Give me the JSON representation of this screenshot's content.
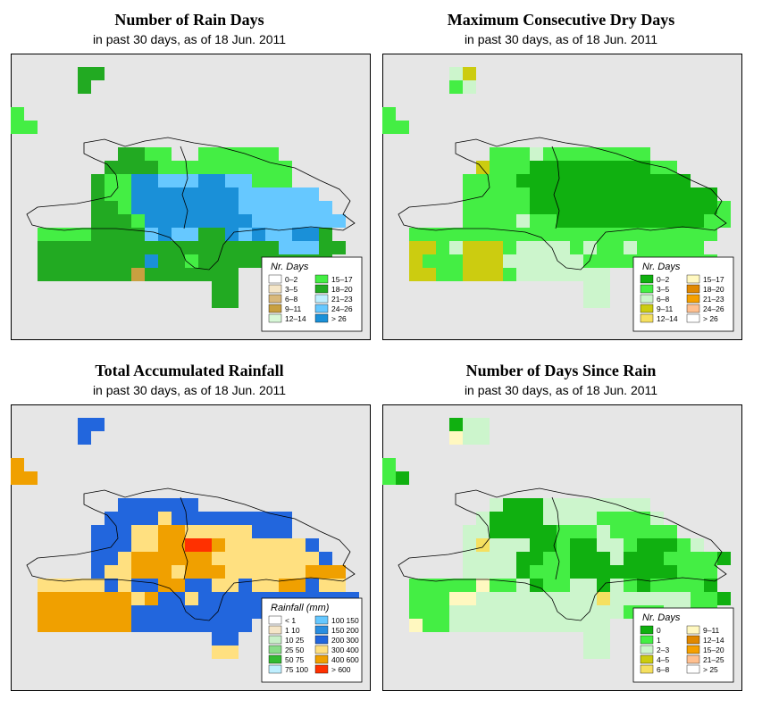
{
  "panels": [
    {
      "id": "rain-days",
      "title": "Number of Rain Days",
      "subtitle": "in past 30 days, as of  18 Jun. 2011",
      "legend": {
        "title": "Nr. Days",
        "items": [
          {
            "label": "0–2",
            "color": "#ffffff"
          },
          {
            "label": "3–5",
            "color": "#f5e6c8"
          },
          {
            "label": "6–8",
            "color": "#d9b87a"
          },
          {
            "label": "9–11",
            "color": "#c8a040"
          },
          {
            "label": "12–14",
            "color": "#d8f8d8"
          },
          {
            "label": "15–17",
            "color": "#44ee44"
          },
          {
            "label": "18–20",
            "color": "#22aa22"
          },
          {
            "label": "21–23",
            "color": "#bfefff"
          },
          {
            "label": "24–26",
            "color": "#66c8ff"
          },
          {
            "label": "> 26",
            "color": "#1a90d8"
          }
        ]
      },
      "grid": [
        "...........................",
        ".....GG....................",
        ".....G.....................",
        "...........................",
        "L..........................",
        "LL.........................",
        "...........................",
        "........GGLL..LLLLLL.......",
        ".......GGGGLLLLLLLLLL......",
        "......GLLBBSSSBBSSLLL......",
        "......GLLBBBBBBBBSSSSSS....",
        "......GGLBBBBBBBBSSSSSSS...",
        "......GGGLBBBBBBBBSSSSSSS..",
        "..LLLLGGGGSBSSGGBSBSSBBG...",
        "..GGGGGGGGGGGGGGGGGGSSSGG..",
        "..GGGGGGGGBGGLGGGGGGGGGG...",
        "..GGGGGGGOGGGGGGG..........",
        "...............GG..........",
        "...............GG..........",
        "..........................."
      ]
    },
    {
      "id": "dry-days",
      "title": "Maximum Consecutive Dry Days",
      "subtitle": "in past 30 days, as of  18 Jun. 2011",
      "legend": {
        "title": "Nr. Days",
        "items": [
          {
            "label": "0–2",
            "color": "#10b010"
          },
          {
            "label": "3–5",
            "color": "#44ee44"
          },
          {
            "label": "6–8",
            "color": "#ccf5cc"
          },
          {
            "label": "9–11",
            "color": "#cccc10"
          },
          {
            "label": "12–14",
            "color": "#f5e060"
          },
          {
            "label": "15–17",
            "color": "#fff8c0"
          },
          {
            "label": "18–20",
            "color": "#e08800"
          },
          {
            "label": "21–23",
            "color": "#f5a000"
          },
          {
            "label": "24–26",
            "color": "#ffc090"
          },
          {
            "label": "> 26",
            "color": "#ffffff"
          }
        ]
      },
      "grid": [
        "...........................",
        ".....LY....................",
        ".....GL....................",
        "...........................",
        "G..........................",
        "GG.........................",
        "...........................",
        "........GGGLGGGGGGGG.......",
        ".......YGGGDDDDDDDDDGG.....",
        "......GGGGDDDDDDDDDDDDD....",
        "......GGGGGDDDDDDDDDDDDDD..",
        "......GGGGGDDDDDDDDDDDDDDG.",
        "......GGGGLGGDDDDDDDDDDDGG.",
        "..GGGGGGGGGGGGGGGGGGGGGGG..",
        "..YYGLYYYGLLLLGLGGLGGGGG...",
        "..YGGGYYYLLLLLLGGGGGGGGGG..",
        "..YYGGYYYGLLLLLLL..........",
        "...............LL..........",
        "...............LL..........",
        "..........................."
      ]
    },
    {
      "id": "rainfall",
      "title": "Total Accumulated Rainfall",
      "subtitle": "in past 30 days, as of  18 Jun. 2011",
      "legend": {
        "title": "Rainfall (mm)",
        "items": [
          {
            "label": "< 1",
            "color": "#ffffff"
          },
          {
            "label": "1   10",
            "color": "#f5e6c8"
          },
          {
            "label": "10   25",
            "color": "#c8f0c8"
          },
          {
            "label": "25   50",
            "color": "#88dd88"
          },
          {
            "label": "50   75",
            "color": "#33bb33"
          },
          {
            "label": "75   100",
            "color": "#bfefff"
          },
          {
            "label": "100   150",
            "color": "#66c8ff"
          },
          {
            "label": "150   200",
            "color": "#2a8ee0"
          },
          {
            "label": "200   300",
            "color": "#2266dd"
          },
          {
            "label": "300   400",
            "color": "#ffe080"
          },
          {
            "label": "400   600",
            "color": "#f0a000"
          },
          {
            "label": "> 600",
            "color": "#ff3000"
          }
        ]
      },
      "grid": [
        "...........................",
        ".....NN....................",
        ".....N.....................",
        "...........................",
        "O..........................",
        "OO.........................",
        "...........................",
        "........NNNNNN.............",
        ".......NNNNYNNNNNNNNN......",
        "......NNNYYOOYYYYYNNN......",
        "......NNNYYOORROYYYYYYN....",
        "......NNYOOOOOOYYYYYYYYN...",
        "......NYYOOOYOOOYYYYYYOOO..",
        "..YYYYYNYNNOONNYYNYYOONYY..",
        "..OOOOOOOYONNYNNNNNNNNNNNN.",
        "..OOOOOOONNNNNNNNNNNNNNNN..",
        "..OOOOOOONNNNNNNNN.........",
        "...............NN..........",
        "...............YY..........",
        "..........................."
      ]
    },
    {
      "id": "since-rain",
      "title": "Number of Days Since Rain",
      "subtitle": "in past 30 days, as of  18 Jun. 2011",
      "legend": {
        "title": "Nr. Days",
        "items": [
          {
            "label": "0",
            "color": "#10b010"
          },
          {
            "label": "1",
            "color": "#44ee44"
          },
          {
            "label": "2–3",
            "color": "#ccf5cc"
          },
          {
            "label": "4–5",
            "color": "#cccc10"
          },
          {
            "label": "6–8",
            "color": "#f5e060"
          },
          {
            "label": "9–11",
            "color": "#fff8c0"
          },
          {
            "label": "12–14",
            "color": "#e08800"
          },
          {
            "label": "15–20",
            "color": "#f5a000"
          },
          {
            "label": "21–25",
            "color": "#ffc090"
          },
          {
            "label": "> 25",
            "color": "#ffffff"
          }
        ]
      },
      "grid": [
        "...........................",
        ".....DLL...................",
        ".....PLL...................",
        "...........................",
        "G..........................",
        "GD.........................",
        "...........................",
        "........LDDDLLLLLLLL.......",
        ".......LDDDDLLLLGGGGL......",
        "......LLDDDDDGGGLGGGGG.....",
        "......LYLLLDDGDDLLGDDDGL...",
        "......LLLLDDGGDDDLDDDGGGGD.",
        "......LLLLDGGGDDDDDDDDGGG..",
        "..GGGGGPGGLDGGLLDLGDGGGGD..",
        "..GGGPPLLLLLLLLLYLLLLLLGGD.",
        "..GGGLLLLLLLLLLLLLGGGLLGG..",
        "..PGGLLLLLLLLLLLL..........",
        "...............LL..........",
        "...............LL..........",
        "..........................."
      ]
    }
  ]
}
